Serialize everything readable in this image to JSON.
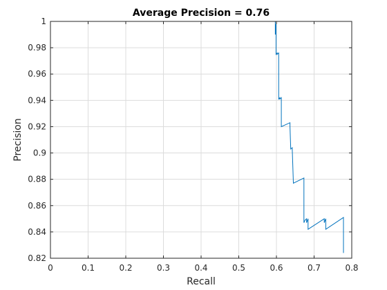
{
  "chart_data": {
    "type": "line",
    "title": "Average Precision = 0.76",
    "xlabel": "Recall",
    "ylabel": "Precision",
    "xlim": [
      0,
      0.8
    ],
    "ylim": [
      0.82,
      1.0
    ],
    "xticks": [
      "0",
      "0.1",
      "0.2",
      "0.3",
      "0.4",
      "0.5",
      "0.6",
      "0.7",
      "0.8"
    ],
    "yticks": [
      "0.82",
      "0.84",
      "0.86",
      "0.88",
      "0.9",
      "0.92",
      "0.94",
      "0.96",
      "0.98",
      "1"
    ],
    "grid": true,
    "series": [
      {
        "color": "#0072bd",
        "x": [
          0.0,
          0.597,
          0.597,
          0.599,
          0.599,
          0.602,
          0.602,
          0.606,
          0.606,
          0.609,
          0.609,
          0.613,
          0.613,
          0.636,
          0.636,
          0.638,
          0.642,
          0.642,
          0.645,
          0.645,
          0.673,
          0.673,
          0.676,
          0.68,
          0.68,
          0.684,
          0.684,
          0.727,
          0.727,
          0.731,
          0.731,
          0.778,
          0.778
        ],
        "y": [
          1.0,
          1.0,
          0.99,
          0.998,
          0.975,
          0.976,
          0.975,
          0.976,
          0.941,
          0.942,
          0.941,
          0.942,
          0.92,
          0.923,
          0.92,
          0.903,
          0.904,
          0.903,
          0.877,
          0.877,
          0.881,
          0.847,
          0.849,
          0.85,
          0.847,
          0.85,
          0.842,
          0.85,
          0.847,
          0.85,
          0.842,
          0.851,
          0.824
        ]
      }
    ]
  }
}
